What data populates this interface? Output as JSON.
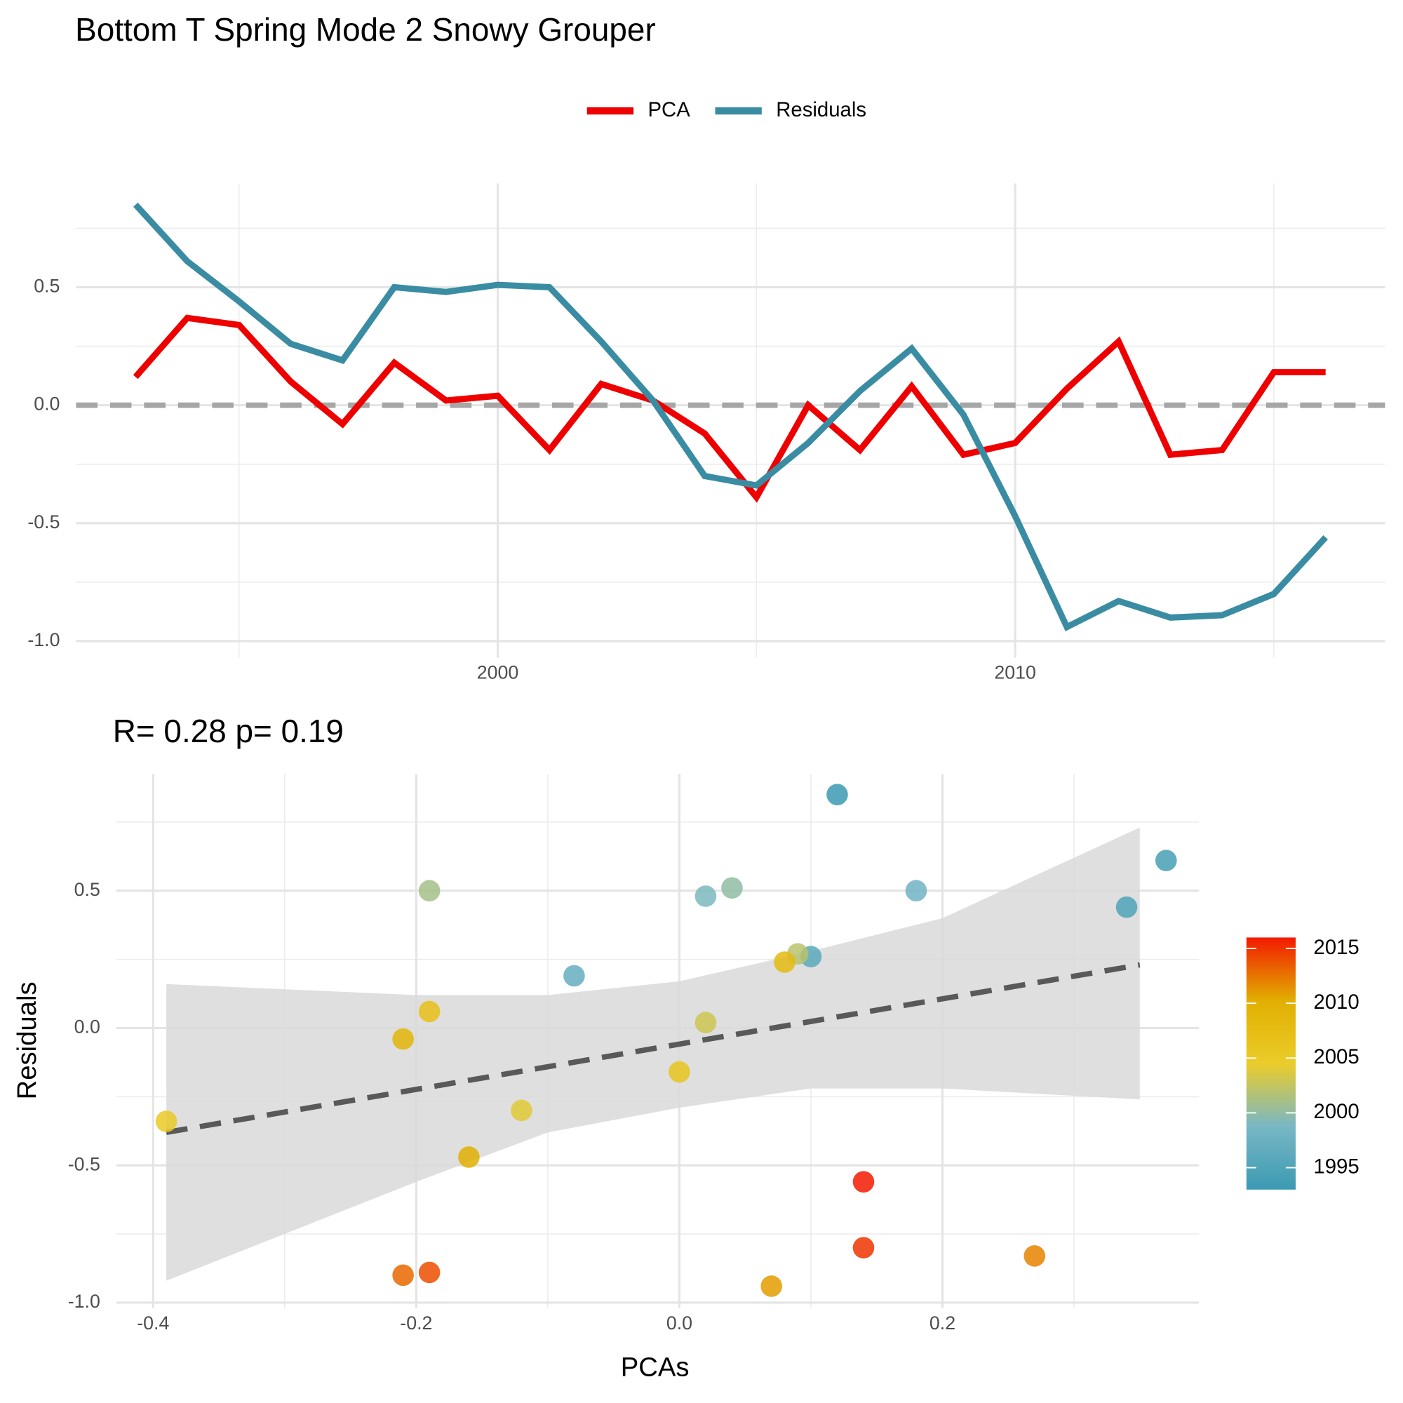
{
  "chart_data": [
    {
      "type": "line",
      "title": "Bottom T Spring Mode 2 Snowy Grouper",
      "x": [
        1993,
        1994,
        1995,
        1996,
        1997,
        1998,
        1999,
        2000,
        2001,
        2002,
        2003,
        2004,
        2005,
        2006,
        2007,
        2008,
        2009,
        2010,
        2011,
        2012,
        2013,
        2014,
        2015,
        2016
      ],
      "series": [
        {
          "name": "PCA",
          "color": "#ee0000",
          "values": [
            0.12,
            0.37,
            0.34,
            0.1,
            -0.08,
            0.18,
            0.02,
            0.04,
            -0.19,
            0.09,
            0.02,
            -0.12,
            -0.39,
            0.0,
            -0.19,
            0.08,
            -0.21,
            -0.16,
            0.07,
            0.27,
            -0.21,
            -0.19,
            0.14,
            0.14
          ]
        },
        {
          "name": "Residuals",
          "color": "#3a8ca3",
          "values": [
            0.85,
            0.61,
            0.44,
            0.26,
            0.19,
            0.5,
            0.48,
            0.51,
            0.5,
            0.27,
            0.02,
            -0.3,
            -0.34,
            -0.16,
            0.06,
            0.24,
            -0.04,
            -0.47,
            -0.94,
            -0.83,
            -0.9,
            -0.89,
            -0.8,
            -0.56
          ]
        }
      ],
      "xlim": [
        1991.85,
        2017.15
      ],
      "xticks": [
        2000,
        2010
      ],
      "ylim": [
        -1.07,
        0.94
      ],
      "yticks": [
        {
          "value": -1,
          "label": "-1.0"
        },
        -0.5,
        {
          "value": 0,
          "label": "0.0"
        },
        0.5
      ],
      "hline": 0,
      "grid": true,
      "legend": "top"
    },
    {
      "type": "scatter",
      "subtitle": "R= 0.28  p= 0.19",
      "xlabel": "PCAs",
      "ylabel": "Residuals",
      "x": [
        0.12,
        0.37,
        0.34,
        0.1,
        -0.08,
        0.18,
        0.02,
        0.04,
        -0.19,
        0.09,
        0.02,
        -0.12,
        -0.39,
        0.0,
        -0.19,
        0.08,
        -0.21,
        -0.16,
        0.07,
        0.27,
        -0.21,
        -0.19,
        0.14,
        0.14
      ],
      "y": [
        0.85,
        0.61,
        0.44,
        0.26,
        0.19,
        0.5,
        0.48,
        0.51,
        0.5,
        0.27,
        0.02,
        -0.3,
        -0.34,
        -0.16,
        0.06,
        0.24,
        -0.04,
        -0.47,
        -0.94,
        -0.83,
        -0.9,
        -0.89,
        -0.8,
        -0.56
      ],
      "years": [
        1993,
        1994,
        1995,
        1996,
        1997,
        1998,
        1999,
        2000,
        2001,
        2002,
        2003,
        2004,
        2005,
        2006,
        2007,
        2008,
        2009,
        2010,
        2011,
        2012,
        2013,
        2014,
        2015,
        2016
      ],
      "colors": [
        "#3B9AB2",
        "#78B7C5",
        "#EBCC2A",
        "#E1AF00",
        "#F21A00"
      ],
      "colorlim": [
        1993,
        2016
      ],
      "colorticks": [
        1995,
        2000,
        2005,
        2010,
        2015
      ],
      "fit": {
        "x": [
          -0.39,
          0.35
        ],
        "y": [
          -0.38,
          0.23
        ]
      },
      "band": {
        "x": [
          -0.39,
          -0.2,
          -0.1,
          0,
          0.1,
          0.2,
          0.35
        ],
        "upper": [
          0.16,
          0.12,
          0.12,
          0.17,
          0.28,
          0.4,
          0.73
        ],
        "lower": [
          -0.92,
          -0.56,
          -0.38,
          -0.29,
          -0.22,
          -0.22,
          -0.26
        ]
      },
      "xlim": [
        -0.428,
        0.395
      ],
      "xticks": [
        -0.4,
        -0.2,
        {
          "value": 0,
          "label": "0.0"
        },
        0.2
      ],
      "ylim": [
        -1.02,
        0.925
      ],
      "yticks": [
        {
          "value": -1,
          "label": "-1.0"
        },
        -0.5,
        {
          "value": 0,
          "label": "0.0"
        },
        0.5
      ],
      "grid": true,
      "legend": "right"
    }
  ]
}
